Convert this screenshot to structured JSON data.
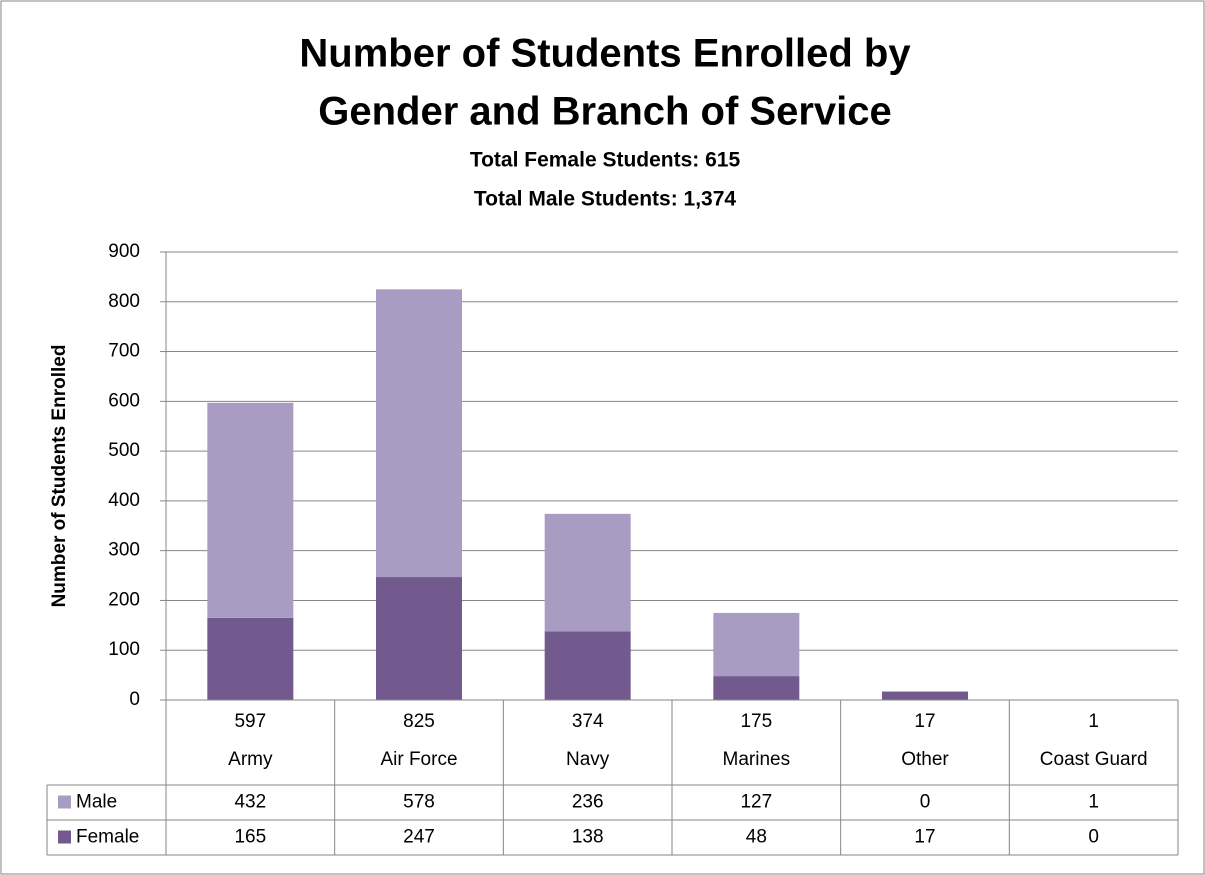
{
  "chart_data": {
    "type": "stacked_bar",
    "title": [
      "Number of Students Enrolled by",
      "Gender and Branch of Service"
    ],
    "subtitle": [
      "Total Female Students: 615",
      "Total Male Students: 1,374"
    ],
    "y_label": "Number of Students Enrolled",
    "categories": [
      [
        "597",
        "Army"
      ],
      [
        "825",
        "Air Force"
      ],
      [
        "374",
        "Navy"
      ],
      [
        "175",
        "Marines"
      ],
      [
        "17",
        "Other"
      ],
      [
        "1",
        "Coast Guard"
      ]
    ],
    "series": [
      {
        "name": "Female",
        "color": "#725a8f",
        "values": [
          165,
          247,
          138,
          48,
          17,
          0
        ]
      },
      {
        "name": "Male",
        "color": "#a99cc2",
        "values": [
          432,
          578,
          236,
          127,
          0,
          1
        ]
      }
    ],
    "table_row_order": [
      "Male",
      "Female"
    ],
    "ylim": [
      0,
      900
    ],
    "yticks": [
      0,
      100,
      200,
      300,
      400,
      500,
      600,
      700,
      800,
      900
    ],
    "grid": true
  }
}
